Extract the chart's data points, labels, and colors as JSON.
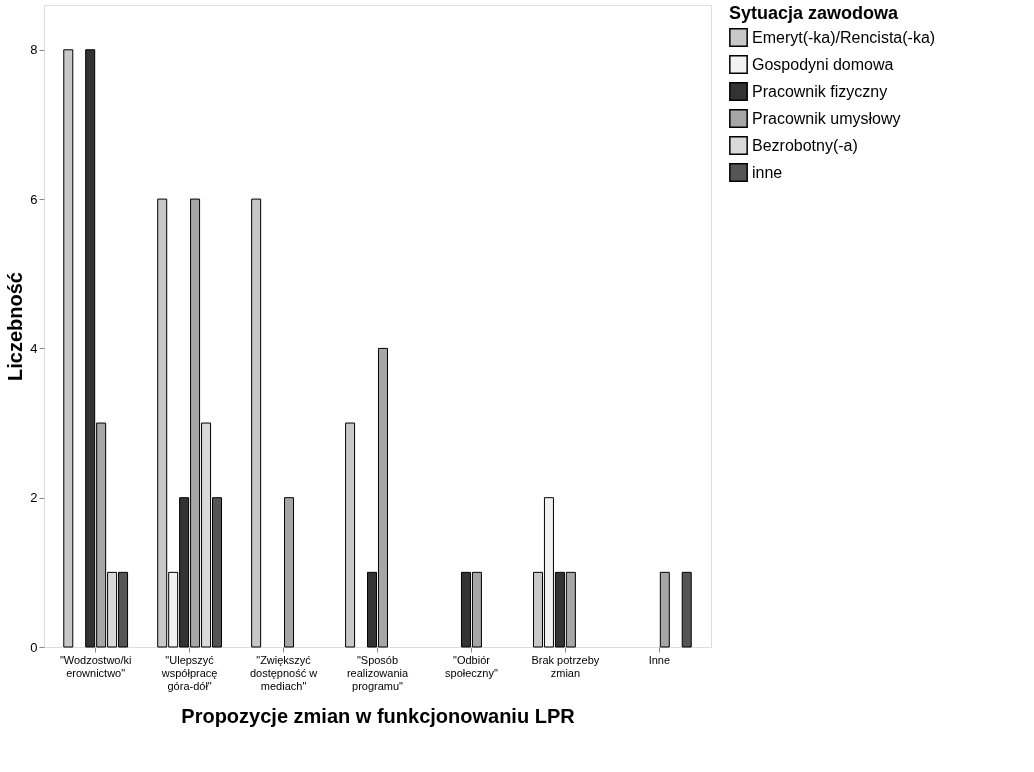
{
  "chart_data": {
    "type": "bar",
    "xlabel": "Propozycje zmian w funkcjonowaniu LPR",
    "ylabel": "Liczebność",
    "legend_title": "Sytuacja zawodowa",
    "categories": [
      "\"Wodzostwo/ki\nerownictwo\"",
      "\"Ulepszyć\nwspółpracę\ngóra-dół\"",
      "\"Zwiększyć\ndostępność w\nmediach\"",
      "\"Sposób\nrealizowania\nprogramu\"",
      "\"Odbiór\nspołeczny\"",
      "Brak potrzeby\nzmian",
      "Inne"
    ],
    "series": [
      {
        "name": "Emeryt(-ka)/Rencista(-ka)",
        "color": "#c8c8c8",
        "values": [
          8,
          6,
          6,
          3,
          null,
          1,
          null
        ]
      },
      {
        "name": "Gospodyni domowa",
        "color": "#f2f2f2",
        "values": [
          null,
          1,
          null,
          null,
          null,
          2,
          null
        ]
      },
      {
        "name": "Pracownik fizyczny",
        "color": "#333333",
        "values": [
          8,
          2,
          null,
          1,
          1,
          1,
          null
        ]
      },
      {
        "name": "Pracownik umysłowy",
        "color": "#a6a6a6",
        "values": [
          3,
          6,
          2,
          4,
          1,
          1,
          1
        ]
      },
      {
        "name": "Bezrobotny(-a)",
        "color": "#d9d9d9",
        "values": [
          1,
          3,
          null,
          null,
          null,
          null,
          null
        ]
      },
      {
        "name": "inne",
        "color": "#555555",
        "values": [
          1,
          2,
          null,
          null,
          null,
          null,
          1
        ]
      }
    ],
    "ylim": [
      0,
      8.6
    ],
    "yticks": [
      0,
      2,
      4,
      6,
      8
    ],
    "grid": false,
    "legend": "top right"
  }
}
